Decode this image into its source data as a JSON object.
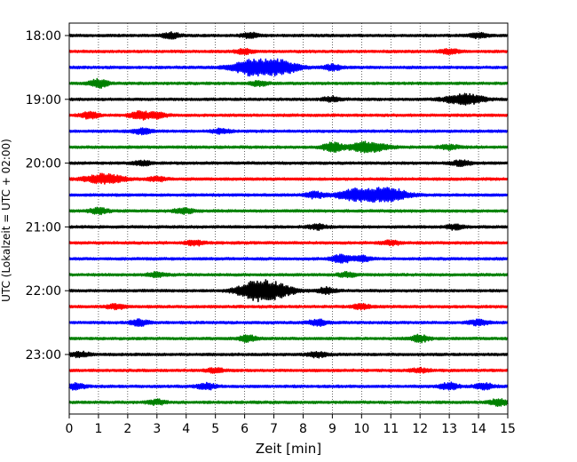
{
  "chart_data": {
    "type": "line",
    "xlabel": "Zeit  [min]",
    "ylabel": "UTC (Lokalzeit = UTC + 02:00)",
    "xlim": [
      0,
      15
    ],
    "x_ticks": [
      0,
      1,
      2,
      3,
      4,
      5,
      6,
      7,
      8,
      9,
      10,
      11,
      12,
      13,
      14,
      15
    ],
    "y_tick_labels": [
      "18:00",
      "19:00",
      "20:00",
      "21:00",
      "22:00",
      "23:00"
    ],
    "grid": "vertical dotted at each minute",
    "row_interval_min": 15,
    "color_cycle": [
      "#000000",
      "#ff0000",
      "#0000ff",
      "#008000"
    ],
    "rows": [
      {
        "time": "18:00",
        "color": "#000000",
        "bursts": [
          {
            "t": 3.5,
            "amp": 0.35
          },
          {
            "t": 6.2,
            "amp": 0.3
          },
          {
            "t": 14.0,
            "amp": 0.3
          }
        ]
      },
      {
        "time": "18:15",
        "color": "#ff0000",
        "bursts": [
          {
            "t": 6.0,
            "amp": 0.3
          },
          {
            "t": 13.0,
            "amp": 0.3
          }
        ]
      },
      {
        "time": "18:30",
        "color": "#0000ff",
        "bursts": [
          {
            "t": 6.2,
            "amp": 1.0
          },
          {
            "t": 7.2,
            "amp": 0.9
          },
          {
            "t": 9.0,
            "amp": 0.35
          }
        ]
      },
      {
        "time": "18:45",
        "color": "#008000",
        "bursts": [
          {
            "t": 1.0,
            "amp": 0.55
          },
          {
            "t": 6.5,
            "amp": 0.3
          }
        ]
      },
      {
        "time": "19:00",
        "color": "#000000",
        "bursts": [
          {
            "t": 13.5,
            "amp": 0.7
          },
          {
            "t": 9.0,
            "amp": 0.3
          }
        ]
      },
      {
        "time": "19:15",
        "color": "#ff0000",
        "bursts": [
          {
            "t": 0.7,
            "amp": 0.4
          },
          {
            "t": 2.4,
            "amp": 0.55
          },
          {
            "t": 3.0,
            "amp": 0.4
          }
        ]
      },
      {
        "time": "19:30",
        "color": "#0000ff",
        "bursts": [
          {
            "t": 2.5,
            "amp": 0.35
          },
          {
            "t": 5.2,
            "amp": 0.3
          }
        ]
      },
      {
        "time": "19:45",
        "color": "#008000",
        "bursts": [
          {
            "t": 9.0,
            "amp": 0.6
          },
          {
            "t": 10.2,
            "amp": 0.65
          },
          {
            "t": 13.0,
            "amp": 0.3
          }
        ]
      },
      {
        "time": "20:00",
        "color": "#000000",
        "bursts": [
          {
            "t": 2.5,
            "amp": 0.3
          },
          {
            "t": 13.4,
            "amp": 0.35
          }
        ]
      },
      {
        "time": "20:15",
        "color": "#ff0000",
        "bursts": [
          {
            "t": 1.2,
            "amp": 0.65
          },
          {
            "t": 3.0,
            "amp": 0.3
          }
        ]
      },
      {
        "time": "20:30",
        "color": "#0000ff",
        "bursts": [
          {
            "t": 8.4,
            "amp": 0.4
          },
          {
            "t": 9.8,
            "amp": 0.8
          },
          {
            "t": 10.9,
            "amp": 0.95
          }
        ]
      },
      {
        "time": "20:45",
        "color": "#008000",
        "bursts": [
          {
            "t": 1.0,
            "amp": 0.4
          },
          {
            "t": 3.9,
            "amp": 0.35
          }
        ]
      },
      {
        "time": "21:00",
        "color": "#000000",
        "bursts": [
          {
            "t": 8.5,
            "amp": 0.3
          },
          {
            "t": 13.2,
            "amp": 0.3
          }
        ]
      },
      {
        "time": "21:15",
        "color": "#ff0000",
        "bursts": [
          {
            "t": 4.3,
            "amp": 0.3
          },
          {
            "t": 11.0,
            "amp": 0.3
          }
        ]
      },
      {
        "time": "21:30",
        "color": "#0000ff",
        "bursts": [
          {
            "t": 9.3,
            "amp": 0.55
          },
          {
            "t": 10.0,
            "amp": 0.35
          }
        ]
      },
      {
        "time": "21:45",
        "color": "#008000",
        "bursts": [
          {
            "t": 3.0,
            "amp": 0.3
          },
          {
            "t": 9.5,
            "amp": 0.3
          }
        ]
      },
      {
        "time": "22:00",
        "color": "#000000",
        "bursts": [
          {
            "t": 6.4,
            "amp": 1.25
          },
          {
            "t": 7.1,
            "amp": 0.7
          },
          {
            "t": 8.8,
            "amp": 0.4
          }
        ]
      },
      {
        "time": "22:15",
        "color": "#ff0000",
        "bursts": [
          {
            "t": 1.6,
            "amp": 0.3
          },
          {
            "t": 10.0,
            "amp": 0.3
          }
        ]
      },
      {
        "time": "22:30",
        "color": "#0000ff",
        "bursts": [
          {
            "t": 2.4,
            "amp": 0.4
          },
          {
            "t": 8.5,
            "amp": 0.4
          },
          {
            "t": 14.0,
            "amp": 0.35
          }
        ]
      },
      {
        "time": "22:45",
        "color": "#008000",
        "bursts": [
          {
            "t": 6.1,
            "amp": 0.4
          },
          {
            "t": 12.0,
            "amp": 0.45
          }
        ]
      },
      {
        "time": "23:00",
        "color": "#000000",
        "bursts": [
          {
            "t": 0.4,
            "amp": 0.35
          },
          {
            "t": 8.5,
            "amp": 0.35
          }
        ]
      },
      {
        "time": "23:15",
        "color": "#ff0000",
        "bursts": [
          {
            "t": 5.0,
            "amp": 0.25
          },
          {
            "t": 12.0,
            "amp": 0.25
          }
        ]
      },
      {
        "time": "23:30",
        "color": "#0000ff",
        "bursts": [
          {
            "t": 0.2,
            "amp": 0.4
          },
          {
            "t": 4.7,
            "amp": 0.4
          },
          {
            "t": 13.0,
            "amp": 0.45
          },
          {
            "t": 14.2,
            "amp": 0.4
          }
        ]
      },
      {
        "time": "23:45",
        "color": "#008000",
        "bursts": [
          {
            "t": 3.0,
            "amp": 0.3
          },
          {
            "t": 14.7,
            "amp": 0.45
          }
        ]
      }
    ]
  }
}
